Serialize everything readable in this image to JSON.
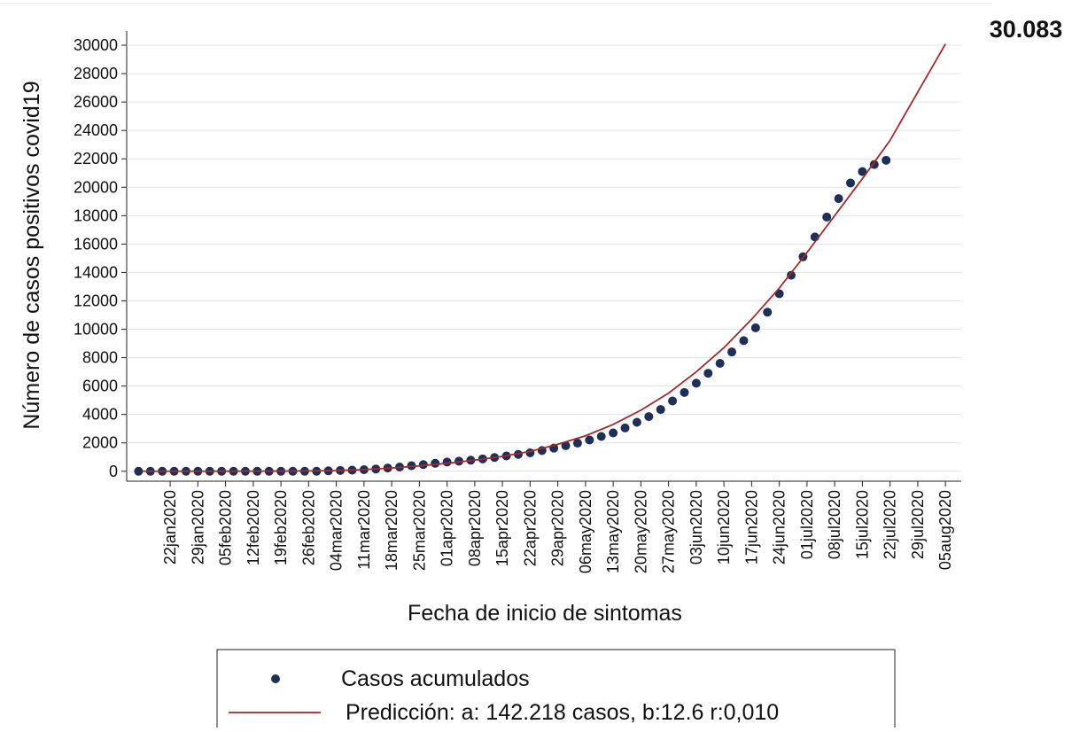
{
  "chart_data": {
    "type": "scatter",
    "y_label": "Número de casos positivos covid19",
    "x_label": "Fecha de inicio de sintomas",
    "annotation": "30.083",
    "xlim": [
      "2020-01-11",
      "2020-08-09"
    ],
    "ylim": [
      -700,
      31000
    ],
    "grid": true,
    "yticks": [
      0,
      2000,
      4000,
      6000,
      8000,
      10000,
      12000,
      14000,
      16000,
      18000,
      20000,
      22000,
      24000,
      26000,
      28000,
      30000
    ],
    "xticks": [
      {
        "value": "2020-01-22",
        "label": "22jan2020"
      },
      {
        "value": "2020-01-29",
        "label": "29jan2020"
      },
      {
        "value": "2020-02-05",
        "label": "05feb2020"
      },
      {
        "value": "2020-02-12",
        "label": "12feb2020"
      },
      {
        "value": "2020-02-19",
        "label": "19feb2020"
      },
      {
        "value": "2020-02-26",
        "label": "26feb2020"
      },
      {
        "value": "2020-03-04",
        "label": "04mar2020"
      },
      {
        "value": "2020-03-11",
        "label": "11mar2020"
      },
      {
        "value": "2020-03-18",
        "label": "18mar2020"
      },
      {
        "value": "2020-03-25",
        "label": "25mar2020"
      },
      {
        "value": "2020-04-01",
        "label": "01apr2020"
      },
      {
        "value": "2020-04-08",
        "label": "08apr2020"
      },
      {
        "value": "2020-04-15",
        "label": "15apr2020"
      },
      {
        "value": "2020-04-22",
        "label": "22apr2020"
      },
      {
        "value": "2020-04-29",
        "label": "29apr2020"
      },
      {
        "value": "2020-05-06",
        "label": "06may2020"
      },
      {
        "value": "2020-05-13",
        "label": "13may2020"
      },
      {
        "value": "2020-05-20",
        "label": "20may2020"
      },
      {
        "value": "2020-05-27",
        "label": "27may2020"
      },
      {
        "value": "2020-06-03",
        "label": "03jun2020"
      },
      {
        "value": "2020-06-10",
        "label": "10jun2020"
      },
      {
        "value": "2020-06-17",
        "label": "17jun2020"
      },
      {
        "value": "2020-06-24",
        "label": "24jun2020"
      },
      {
        "value": "2020-07-01",
        "label": "01jul2020"
      },
      {
        "value": "2020-07-08",
        "label": "08jul2020"
      },
      {
        "value": "2020-07-15",
        "label": "15jul2020"
      },
      {
        "value": "2020-07-22",
        "label": "22jul2020"
      },
      {
        "value": "2020-07-29",
        "label": "29jul2020"
      },
      {
        "value": "2020-08-05",
        "label": "05aug2020"
      }
    ],
    "series": [
      {
        "name": "Casos acumulados",
        "kind": "points",
        "color": "#1f2f55",
        "x": [
          "2020-01-14",
          "2020-01-17",
          "2020-01-20",
          "2020-01-23",
          "2020-01-26",
          "2020-01-29",
          "2020-02-01",
          "2020-02-04",
          "2020-02-07",
          "2020-02-10",
          "2020-02-13",
          "2020-02-16",
          "2020-02-19",
          "2020-02-22",
          "2020-02-25",
          "2020-02-28",
          "2020-03-02",
          "2020-03-05",
          "2020-03-08",
          "2020-03-11",
          "2020-03-14",
          "2020-03-17",
          "2020-03-20",
          "2020-03-23",
          "2020-03-26",
          "2020-03-29",
          "2020-04-01",
          "2020-04-04",
          "2020-04-07",
          "2020-04-10",
          "2020-04-13",
          "2020-04-16",
          "2020-04-19",
          "2020-04-22",
          "2020-04-25",
          "2020-04-28",
          "2020-05-01",
          "2020-05-04",
          "2020-05-07",
          "2020-05-10",
          "2020-05-13",
          "2020-05-16",
          "2020-05-19",
          "2020-05-22",
          "2020-05-25",
          "2020-05-28",
          "2020-05-31",
          "2020-06-03",
          "2020-06-06",
          "2020-06-09",
          "2020-06-12",
          "2020-06-15",
          "2020-06-18",
          "2020-06-21",
          "2020-06-24",
          "2020-06-27",
          "2020-06-30",
          "2020-07-03",
          "2020-07-06",
          "2020-07-09",
          "2020-07-12",
          "2020-07-15",
          "2020-07-18",
          "2020-07-21"
        ],
        "values": [
          0,
          0,
          0,
          0,
          0,
          0,
          0,
          0,
          0,
          0,
          0,
          0,
          0,
          0,
          0,
          0,
          30,
          60,
          80,
          110,
          160,
          230,
          300,
          390,
          470,
          560,
          650,
          710,
          780,
          870,
          970,
          1080,
          1190,
          1300,
          1460,
          1630,
          1800,
          1980,
          2200,
          2450,
          2700,
          3050,
          3450,
          3850,
          4350,
          4950,
          5550,
          6200,
          6900,
          7600,
          8400,
          9200,
          10100,
          11200,
          12500,
          13800,
          15100,
          16500,
          17900,
          19200,
          20300,
          21100,
          21600,
          21900
        ]
      },
      {
        "name": "Predicción: a: 142.218 casos, b:12.6 r:0,010",
        "kind": "line",
        "color": "#a52a2a",
        "x": [
          "2020-01-15",
          "2020-01-22",
          "2020-01-29",
          "2020-02-05",
          "2020-02-12",
          "2020-02-19",
          "2020-02-26",
          "2020-03-04",
          "2020-03-11",
          "2020-03-18",
          "2020-03-25",
          "2020-04-01",
          "2020-04-08",
          "2020-04-15",
          "2020-04-22",
          "2020-04-29",
          "2020-05-06",
          "2020-05-13",
          "2020-05-20",
          "2020-05-27",
          "2020-06-03",
          "2020-06-10",
          "2020-06-17",
          "2020-06-24",
          "2020-07-01",
          "2020-07-08",
          "2020-07-15",
          "2020-07-22",
          "2020-07-29",
          "2020-08-05"
        ],
        "values": [
          0,
          0,
          0,
          5,
          10,
          15,
          25,
          50,
          120,
          230,
          380,
          560,
          780,
          1050,
          1400,
          1900,
          2500,
          3300,
          4300,
          5500,
          7000,
          8700,
          10700,
          12900,
          15400,
          18000,
          20600,
          23300,
          26700,
          30083
        ]
      }
    ]
  }
}
